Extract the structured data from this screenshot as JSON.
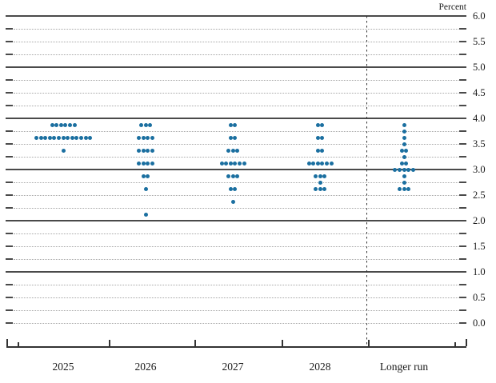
{
  "chart_data": {
    "type": "scatter",
    "subtype": "fomc-dot-plot",
    "title": "",
    "xlabel": "",
    "ylabel": "Percent",
    "ylim": [
      0.0,
      6.0
    ],
    "ytick_interval": 0.5,
    "gridline_interval": 0.25,
    "grid": true,
    "legend_position": "none",
    "y_tick_labels": [
      "6.0",
      "5.5",
      "5.0",
      "4.5",
      "4.0",
      "3.5",
      "3.0",
      "2.5",
      "2.0",
      "1.5",
      "1.0",
      "0.5",
      "0.0"
    ],
    "categories": [
      "2025",
      "2026",
      "2027",
      "2028",
      "Longer run"
    ],
    "separator": {
      "after_category": "2028",
      "style": "vertical-dashed"
    },
    "series": [
      {
        "name": "2025",
        "dots": [
          {
            "rate": 3.875,
            "count": 6
          },
          {
            "rate": 3.625,
            "count": 13
          },
          {
            "rate": 3.375,
            "count": 1
          }
        ]
      },
      {
        "name": "2026",
        "dots": [
          {
            "rate": 3.875,
            "count": 3
          },
          {
            "rate": 3.625,
            "count": 4
          },
          {
            "rate": 3.375,
            "count": 4
          },
          {
            "rate": 3.125,
            "count": 4
          },
          {
            "rate": 2.875,
            "count": 2
          },
          {
            "rate": 2.625,
            "count": 1
          },
          {
            "rate": 2.125,
            "count": 1
          }
        ]
      },
      {
        "name": "2027",
        "dots": [
          {
            "rate": 3.875,
            "count": 2
          },
          {
            "rate": 3.625,
            "count": 2
          },
          {
            "rate": 3.375,
            "count": 3
          },
          {
            "rate": 3.125,
            "count": 6
          },
          {
            "rate": 2.875,
            "count": 3
          },
          {
            "rate": 2.625,
            "count": 2
          },
          {
            "rate": 2.375,
            "count": 1
          }
        ]
      },
      {
        "name": "2028",
        "dots": [
          {
            "rate": 3.875,
            "count": 2
          },
          {
            "rate": 3.625,
            "count": 2
          },
          {
            "rate": 3.375,
            "count": 2
          },
          {
            "rate": 3.125,
            "count": 6
          },
          {
            "rate": 2.875,
            "count": 3
          },
          {
            "rate": 2.75,
            "count": 1
          },
          {
            "rate": 2.625,
            "count": 3
          }
        ]
      },
      {
        "name": "Longer run",
        "dots": [
          {
            "rate": 3.875,
            "count": 1
          },
          {
            "rate": 3.75,
            "count": 1
          },
          {
            "rate": 3.625,
            "count": 1
          },
          {
            "rate": 3.5,
            "count": 1
          },
          {
            "rate": 3.375,
            "count": 2
          },
          {
            "rate": 3.25,
            "count": 1
          },
          {
            "rate": 3.125,
            "count": 2
          },
          {
            "rate": 3.0,
            "count": 5
          },
          {
            "rate": 2.875,
            "count": 1
          },
          {
            "rate": 2.75,
            "count": 1
          },
          {
            "rate": 2.625,
            "count": 3
          }
        ]
      }
    ],
    "colors": {
      "dot": "#1b6fa0",
      "solid_gridline": "#4a4a4a",
      "dotted_gridline": "#a6a6a6",
      "axis": "#333333",
      "text": "#1a1a1a"
    }
  }
}
